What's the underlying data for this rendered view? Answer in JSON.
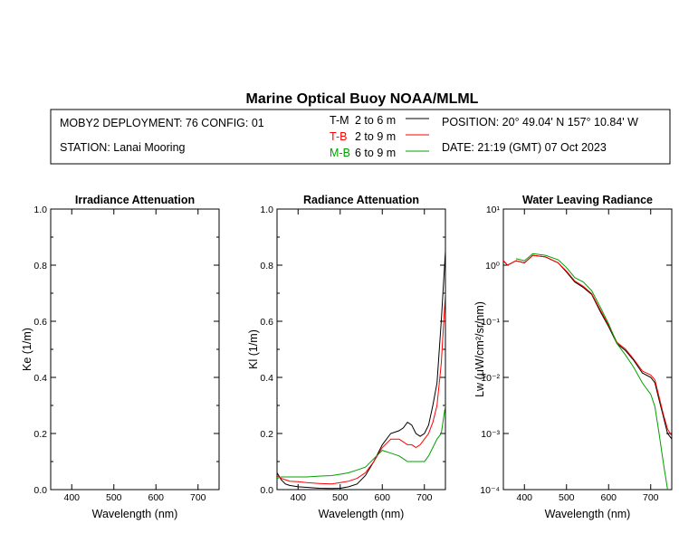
{
  "title": "Marine Optical Buoy NOAA/MLML",
  "info": {
    "deployment": "MOBY2 DEPLOYMENT: 76 CONFIG: 01",
    "station": "STATION: Lanai Mooring",
    "position": "POSITION: 20° 49.04' N   157° 10.84' W",
    "date": "DATE: 21:19 (GMT) 07 Oct 2023",
    "legend": [
      {
        "code": "T-M",
        "range": "2 to 6  m",
        "color": "#000000"
      },
      {
        "code": "T-B",
        "range": "2 to 9  m",
        "color": "#ff0000"
      },
      {
        "code": "M-B",
        "range": "6 to 9  m",
        "color": "#00a000"
      }
    ]
  },
  "chart_data": [
    {
      "type": "line",
      "title": "Irradiance Attenuation",
      "xlabel": "Wavelength (nm)",
      "ylabel": "Ke  (1/m)",
      "xlim": [
        350,
        750
      ],
      "ylim": [
        0,
        1
      ],
      "xticks": [
        "400",
        "500",
        "600",
        "700"
      ],
      "yticks": [
        "0.0",
        "0.2",
        "0.4",
        "0.6",
        "0.8",
        "1.0"
      ],
      "series": []
    },
    {
      "type": "line",
      "title": "Radiance Attenuation",
      "xlabel": "Wavelength (nm)",
      "ylabel": "Kl  (1/m)",
      "xlim": [
        350,
        750
      ],
      "ylim": [
        0,
        1
      ],
      "xticks": [
        "400",
        "500",
        "600",
        "700"
      ],
      "yticks": [
        "0.0",
        "0.2",
        "0.4",
        "0.6",
        "0.8",
        "1.0"
      ],
      "series": [
        {
          "name": "T-M",
          "color": "#000000",
          "x": [
            350,
            360,
            370,
            380,
            400,
            420,
            450,
            480,
            500,
            520,
            540,
            560,
            580,
            600,
            620,
            640,
            650,
            660,
            670,
            680,
            690,
            700,
            710,
            720,
            730,
            740,
            750
          ],
          "y": [
            0.06,
            0.035,
            0.02,
            0.015,
            0.01,
            0.008,
            0.005,
            0.004,
            0.005,
            0.01,
            0.02,
            0.05,
            0.1,
            0.16,
            0.2,
            0.21,
            0.22,
            0.24,
            0.23,
            0.2,
            0.19,
            0.2,
            0.23,
            0.3,
            0.38,
            0.6,
            0.85
          ]
        },
        {
          "name": "T-B",
          "color": "#ff0000",
          "x": [
            350,
            360,
            370,
            380,
            400,
            420,
            450,
            480,
            500,
            520,
            540,
            560,
            580,
            600,
            620,
            640,
            650,
            660,
            670,
            680,
            690,
            700,
            710,
            720,
            730,
            740,
            750
          ],
          "y": [
            0.05,
            0.04,
            0.035,
            0.03,
            0.028,
            0.025,
            0.022,
            0.02,
            0.025,
            0.03,
            0.04,
            0.06,
            0.1,
            0.15,
            0.18,
            0.18,
            0.17,
            0.16,
            0.16,
            0.15,
            0.16,
            0.18,
            0.2,
            0.24,
            0.3,
            0.45,
            0.7
          ]
        },
        {
          "name": "M-B",
          "color": "#00a000",
          "x": [
            350,
            360,
            370,
            380,
            400,
            420,
            450,
            480,
            500,
            520,
            540,
            560,
            580,
            600,
            620,
            640,
            650,
            660,
            670,
            680,
            690,
            700,
            710,
            720,
            730,
            740,
            750
          ],
          "y": [
            0.04,
            0.045,
            0.045,
            0.045,
            0.045,
            0.045,
            0.048,
            0.05,
            0.055,
            0.06,
            0.07,
            0.08,
            0.11,
            0.14,
            0.13,
            0.12,
            0.11,
            0.1,
            0.1,
            0.1,
            0.1,
            0.1,
            0.12,
            0.15,
            0.18,
            0.2,
            0.3
          ]
        }
      ]
    },
    {
      "type": "line",
      "title": "Water Leaving Radiance",
      "xlabel": "Wavelength (nm)",
      "ylabel": "Lw  (μW/cm²/sr/nm)",
      "xlim": [
        350,
        750
      ],
      "ylim": [
        0.0001,
        10
      ],
      "yscale": "log",
      "xticks": [
        "400",
        "500",
        "600",
        "700"
      ],
      "yticks": [
        "10⁻⁴",
        "10⁻³",
        "10⁻²",
        "10⁻¹",
        "10⁰",
        "10¹"
      ],
      "series": [
        {
          "name": "T-M",
          "color": "#000000",
          "x": [
            350,
            360,
            380,
            400,
            420,
            450,
            480,
            500,
            520,
            540,
            560,
            580,
            600,
            620,
            640,
            660,
            680,
            700,
            710,
            720,
            730,
            740,
            750
          ],
          "y": [
            1.2,
            1.0,
            1.2,
            1.1,
            1.5,
            1.4,
            1.1,
            0.75,
            0.5,
            0.4,
            0.3,
            0.15,
            0.08,
            0.04,
            0.03,
            0.02,
            0.012,
            0.01,
            0.008,
            0.004,
            0.002,
            0.001,
            0.0008
          ]
        },
        {
          "name": "T-B",
          "color": "#ff0000",
          "x": [
            350,
            360,
            380,
            400,
            420,
            450,
            480,
            500,
            520,
            540,
            560,
            580,
            600,
            620,
            640,
            660,
            680,
            700,
            710,
            720,
            730,
            740,
            750
          ],
          "y": [
            1.2,
            1.0,
            1.2,
            1.1,
            1.5,
            1.4,
            1.1,
            0.78,
            0.52,
            0.42,
            0.31,
            0.16,
            0.085,
            0.042,
            0.032,
            0.021,
            0.013,
            0.011,
            0.009,
            0.0045,
            0.0022,
            0.0012,
            0.0009
          ]
        },
        {
          "name": "M-B",
          "color": "#00a000",
          "x": [
            380,
            400,
            420,
            450,
            480,
            500,
            520,
            540,
            560,
            580,
            600,
            620,
            640,
            660,
            680,
            700,
            710,
            720,
            730,
            740
          ],
          "y": [
            1.3,
            1.2,
            1.6,
            1.5,
            1.25,
            0.9,
            0.6,
            0.5,
            0.35,
            0.18,
            0.09,
            0.04,
            0.025,
            0.015,
            0.008,
            0.005,
            0.003,
            0.001,
            0.0003,
            0.0001
          ]
        }
      ]
    }
  ]
}
